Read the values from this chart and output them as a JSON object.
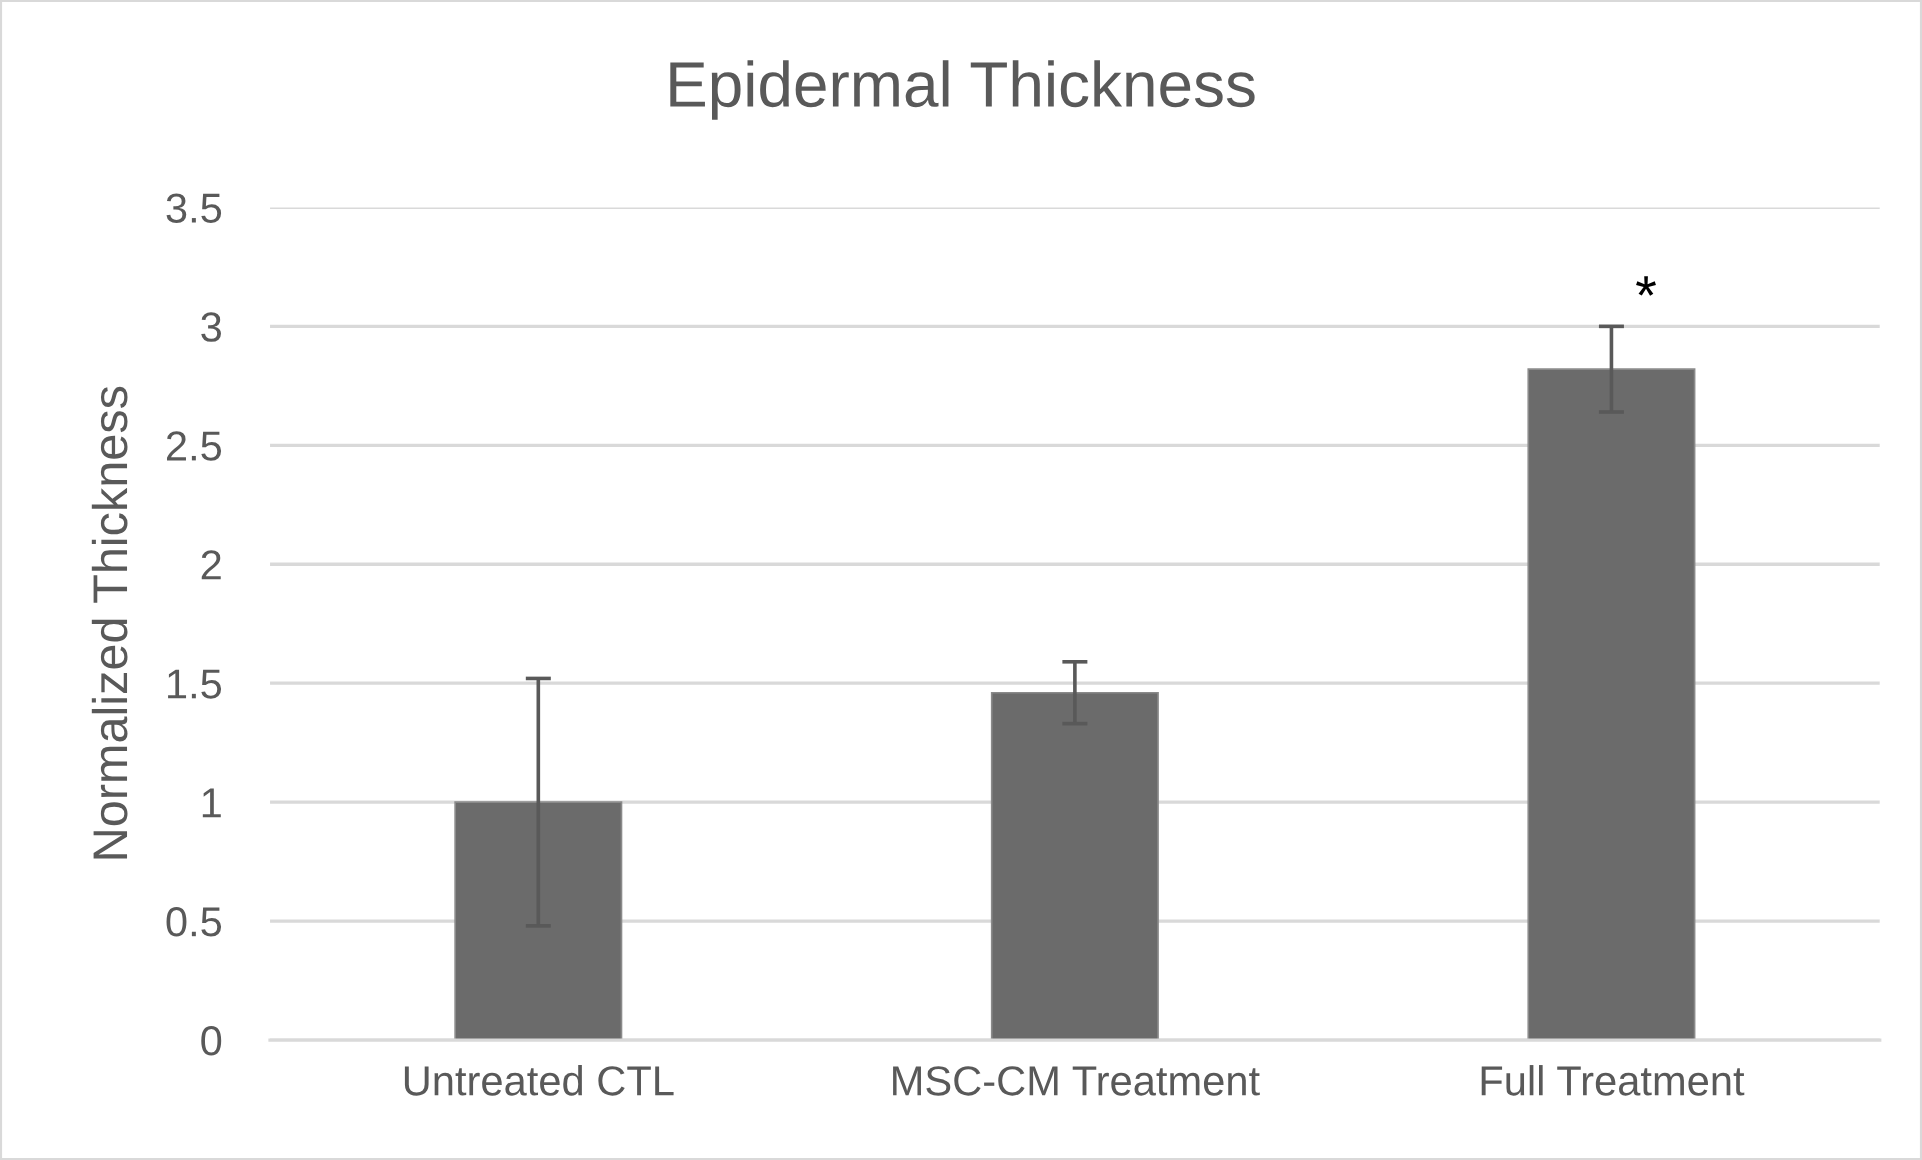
{
  "chart_data": {
    "type": "bar",
    "title": "Epidermal Thickness",
    "ylabel": "Normalized Thickness",
    "categories": [
      "Untreated CTL",
      "MSC-CM Treatment",
      "Full Treatment"
    ],
    "values": [
      1.0,
      1.46,
      2.82
    ],
    "errors": [
      0.52,
      0.13,
      0.18
    ],
    "color": "#6b6b6b",
    "ylim": [
      0,
      3.5
    ],
    "yticks": [
      0,
      0.5,
      1,
      1.5,
      2,
      2.5,
      3,
      3.5
    ],
    "grid": "y",
    "legend": false,
    "annotations": [
      "*"
    ]
  }
}
